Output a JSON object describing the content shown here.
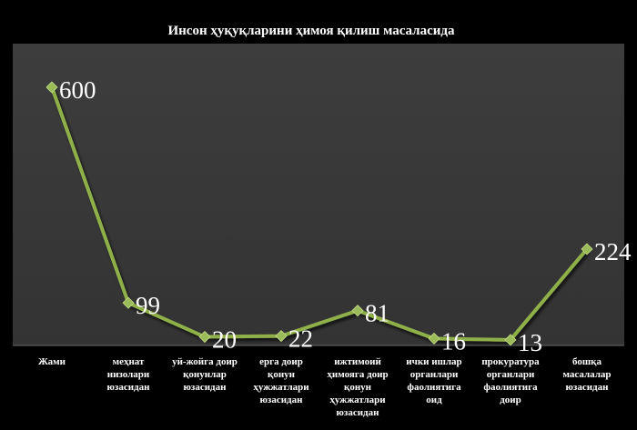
{
  "chart_data": {
    "type": "line",
    "title": "Инсон ҳуқуқларини ҳимоя қилиш масаласида",
    "xlabel": "",
    "ylabel": "",
    "ylim": [
      0,
      650
    ],
    "grid": false,
    "legend": "none",
    "categories": [
      "Жами",
      "меҳнат низолари юзасидан",
      "уй-жойга доир қонунлар юзасидан",
      "ерга доир қонун ҳужжатлари юзасидан",
      "ижтимоий ҳимояга доир қонун ҳужжатлари юзасидан",
      "ички ишлар органлари фаолиятига оид",
      "прокуратура органлари фаолиятига доир",
      "бошқа масалалар юзасидан"
    ],
    "category_lines": [
      [
        "Жами"
      ],
      [
        "меҳнат",
        "низолари",
        "юзасидан"
      ],
      [
        "уй-жойга доир",
        "қонунлар",
        "юзасидан"
      ],
      [
        "ерга доир",
        "қонун",
        "ҳужжатлари",
        "юзасидан"
      ],
      [
        "ижтимоий",
        "ҳимояга доир",
        "қонун",
        "ҳужжатлари",
        "юзасидан"
      ],
      [
        "ички ишлар",
        "органлари",
        "фаолиятига",
        "оид"
      ],
      [
        "прокуратура",
        "органлари",
        "фаолиятига",
        "доир"
      ],
      [
        "бошқа",
        "масалалар",
        "юзасидан"
      ]
    ],
    "series": [
      {
        "values": [
          600,
          99,
          20,
          22,
          81,
          16,
          13,
          224
        ],
        "data_labels": [
          "600",
          "99",
          "20",
          "22",
          "81",
          "16",
          "13",
          "224"
        ]
      }
    ],
    "colors": {
      "background": "#000000",
      "plot_area": "#3a3a3a",
      "line": "#8fb04a",
      "marker": "#9bbb59",
      "text": "#ffffff"
    }
  }
}
